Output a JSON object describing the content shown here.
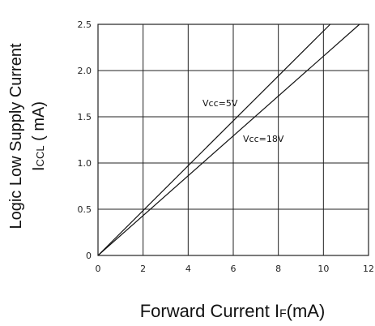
{
  "chart_data": {
    "type": "line",
    "x": {
      "label_main": "Forward Current I",
      "label_sub": "F",
      "label_tail": "(mA)",
      "min": 0,
      "max": 12,
      "ticks": [
        0,
        2,
        4,
        6,
        8,
        10,
        12
      ],
      "tick_labels": [
        "0",
        "2",
        "4",
        "6",
        "8",
        "10",
        "12"
      ]
    },
    "y": {
      "label_line1": "Logic Low Supply Current",
      "label_line2_main": "I",
      "label_line2_sub": "CCL",
      "label_line2_tail": " ( mA)",
      "min": 0,
      "max": 2.5,
      "ticks": [
        0,
        0.5,
        1.0,
        1.5,
        2.0,
        2.5
      ],
      "tick_labels": [
        "0",
        "0.5",
        "1.0",
        "1.5",
        "2.0",
        "2.5"
      ]
    },
    "grid": true,
    "series": [
      {
        "name": "Vcc=5V",
        "x": [
          0,
          10.3
        ],
        "y": [
          0,
          2.5
        ]
      },
      {
        "name": "Vcc=18V",
        "x": [
          0,
          11.6
        ],
        "y": [
          0,
          2.5
        ]
      }
    ],
    "colors": {
      "line": "#111111",
      "grid": "#222222"
    }
  }
}
